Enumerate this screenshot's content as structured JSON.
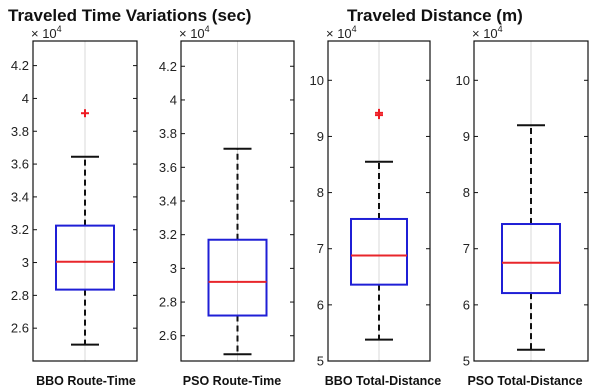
{
  "titles": {
    "left": "Traveled Time Variations (sec)",
    "right": "Traveled Distance (m)"
  },
  "colors": {
    "box": "#1f1fd6",
    "median": "#e8262b",
    "whisker": "#111111",
    "outlier": "#ee1c24",
    "grid": "#d9d9d9"
  },
  "chart_data": [
    {
      "type": "box",
      "category": "BBO Route-Time",
      "ylim": [
        2.4,
        4.35
      ],
      "ticks": [
        "2.6",
        "2.8",
        "3",
        "3.2",
        "3.4",
        "3.6",
        "3.8",
        "4",
        "4.2"
      ],
      "multiplier": "× 10^4",
      "whisker_low": 2.5,
      "q1": 2.835,
      "median": 3.005,
      "q3": 3.225,
      "whisker_high": 3.645,
      "outliers": [
        3.91
      ],
      "grid": "vertical center line"
    },
    {
      "type": "box",
      "category": "PSO Route-Time",
      "ylim": [
        2.45,
        4.35
      ],
      "ticks": [
        "2.6",
        "2.8",
        "3",
        "3.2",
        "3.4",
        "3.6",
        "3.8",
        "4",
        "4.2"
      ],
      "multiplier": "× 10^4",
      "whisker_low": 2.49,
      "q1": 2.72,
      "median": 2.92,
      "q3": 3.17,
      "whisker_high": 3.71,
      "outliers": [],
      "grid": "vertical center line"
    },
    {
      "type": "box",
      "category": "BBO Total-Distance",
      "ylim": [
        5.0,
        10.7
      ],
      "ticks": [
        "5",
        "6",
        "7",
        "8",
        "9",
        "10"
      ],
      "multiplier": "× 10^4",
      "whisker_low": 5.38,
      "q1": 6.36,
      "median": 6.88,
      "q3": 7.53,
      "whisker_high": 8.55,
      "outliers": [
        9.38,
        9.42
      ],
      "grid": "vertical center line"
    },
    {
      "type": "box",
      "category": "PSO Total-Distance",
      "ylim": [
        5.0,
        10.7
      ],
      "ticks": [
        "5",
        "6",
        "7",
        "8",
        "9",
        "10"
      ],
      "multiplier": "× 10^4",
      "whisker_low": 5.2,
      "q1": 6.21,
      "median": 6.75,
      "q3": 7.44,
      "whisker_high": 9.2,
      "outliers": [],
      "grid": "vertical center line"
    }
  ]
}
